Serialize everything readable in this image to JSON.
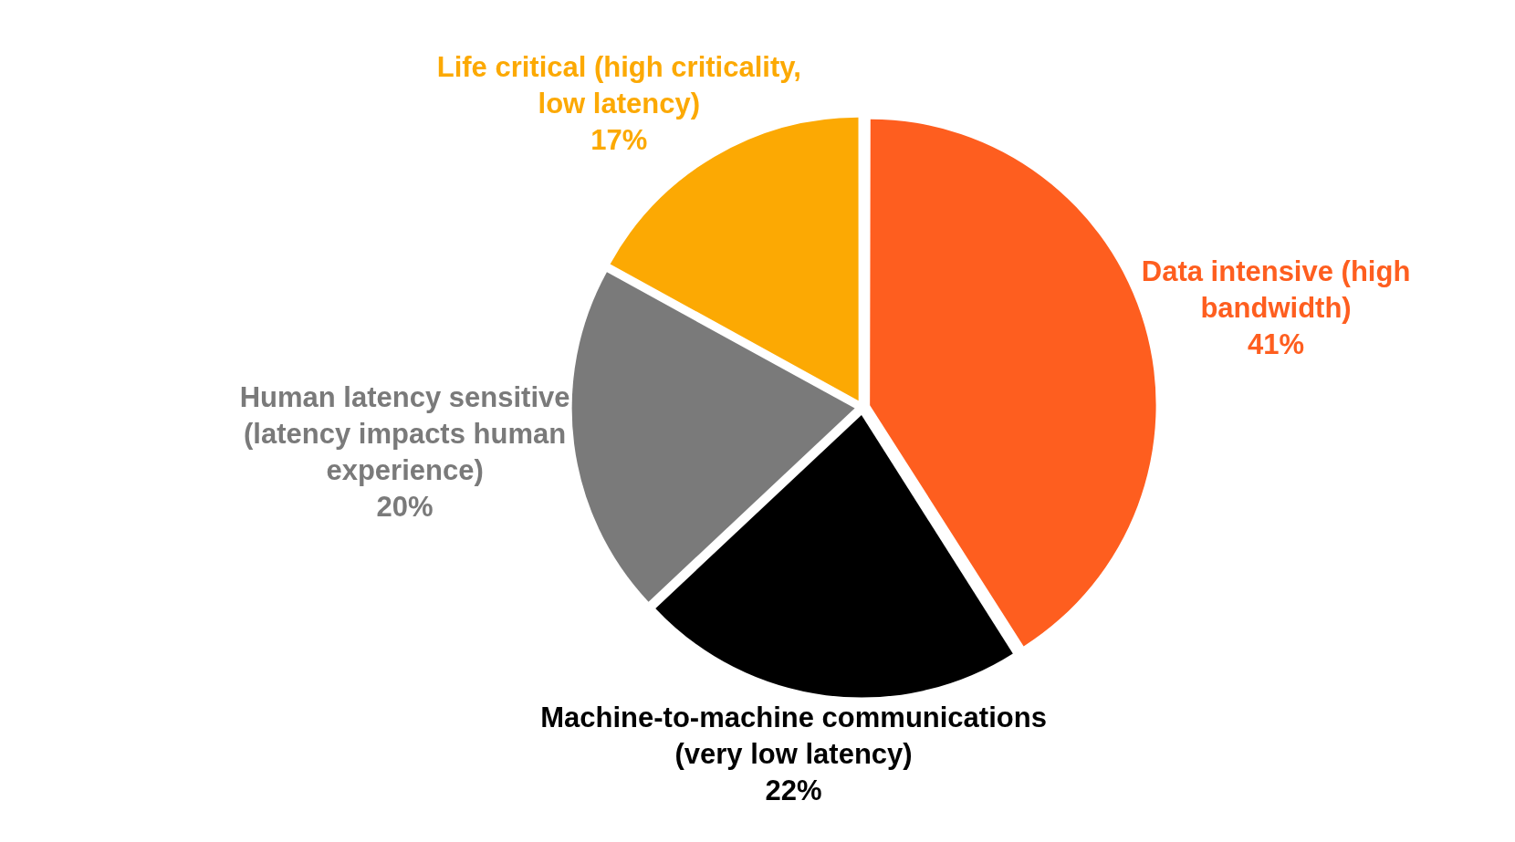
{
  "chart_data": {
    "type": "pie",
    "categories": [
      "Data intensive (high bandwidth)",
      "Machine-to-machine communications (very low latency)",
      "Human latency sensitive (latency impacts human experience)",
      "Life critical (high criticality, low latency)"
    ],
    "values": [
      41,
      22,
      20,
      17
    ],
    "colors": [
      "#fe5e1f",
      "#000000",
      "#7a7a7a",
      "#fca903"
    ],
    "value_labels": [
      "41%",
      "22%",
      "20%",
      "17%"
    ],
    "legend": false
  }
}
